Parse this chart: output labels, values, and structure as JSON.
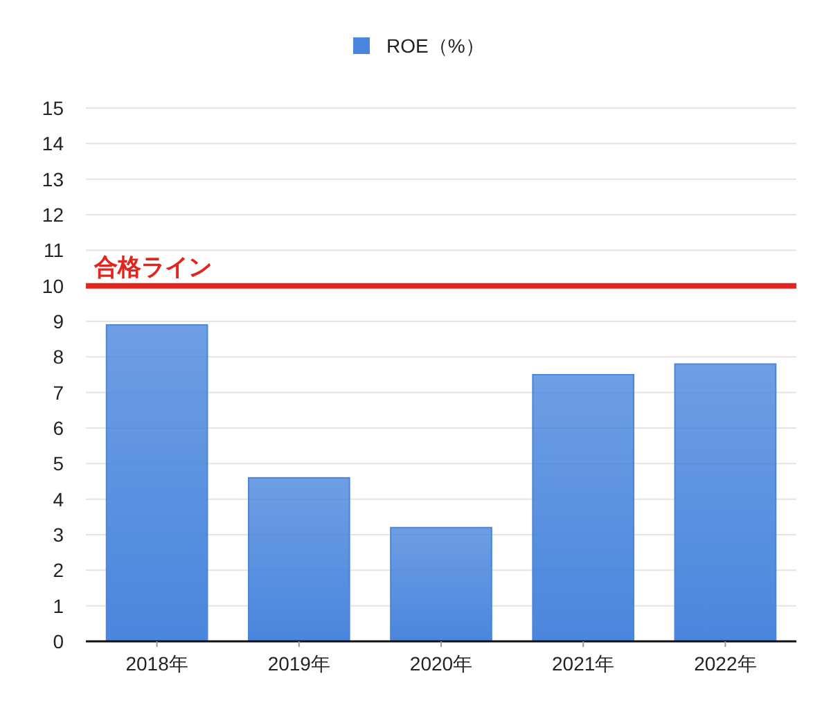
{
  "chart_data": {
    "type": "bar",
    "categories": [
      "2018年",
      "2019年",
      "2020年",
      "2021年",
      "2022年"
    ],
    "series": [
      {
        "name": "ROE（%）",
        "color": "#4a86dd",
        "values": [
          8.9,
          4.6,
          3.2,
          7.5,
          7.8
        ]
      }
    ],
    "ylim": [
      0,
      15
    ],
    "yticks": [
      0,
      1,
      2,
      3,
      4,
      5,
      6,
      7,
      8,
      9,
      10,
      11,
      12,
      13,
      14,
      15
    ],
    "grid": "y",
    "legend": "top",
    "ref_lines": [
      {
        "axis": "y",
        "value": 10,
        "label": "合格ライン",
        "color": "#e0261f"
      }
    ]
  }
}
